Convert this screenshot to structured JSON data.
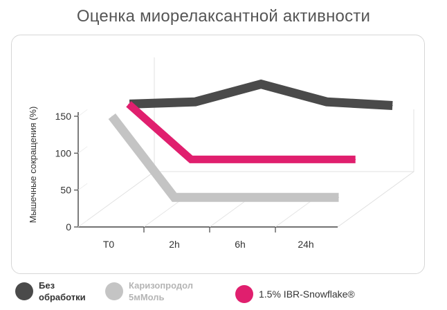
{
  "title": "Оценка миорелаксантной активности",
  "chart_data": {
    "type": "line",
    "style": "3d-ribbon",
    "categories": [
      "T0",
      "2h",
      "6h",
      "24h"
    ],
    "ylabel": "Мышечные сокращения (%)",
    "xlabel": "",
    "ylim": [
      0,
      150
    ],
    "yticks": [
      "0",
      "50",
      "100",
      "150"
    ],
    "grid": false,
    "legend_position": "bottom",
    "series": [
      {
        "name": "Без обработки",
        "color": "#4a4a4a",
        "x": [
          -0.4,
          0.6,
          1.6,
          2.6,
          3.6
        ],
        "values": [
          120,
          123,
          147,
          123,
          118
        ]
      },
      {
        "name": "Каризопродол 5мМоль",
        "color": "#c4c4c4",
        "x": [
          0.05,
          1.0,
          1.8,
          3.5
        ],
        "values": [
          150,
          40,
          40,
          40
        ]
      },
      {
        "name": "1.5% IBR-Snowflake®",
        "color": "#e01f6e",
        "x": [
          0.05,
          1.0,
          1.8,
          3.5
        ],
        "values": [
          150,
          75,
          75,
          75
        ]
      }
    ]
  },
  "legend": [
    {
      "line1": "Без",
      "line2": "обработки",
      "color": "#4a4a4a",
      "text_color": "#333333",
      "bold": true
    },
    {
      "line1": "Каризопродол",
      "line2": "5мМоль",
      "color": "#c4c4c4",
      "text_color": "#b5b5b5",
      "bold": true
    },
    {
      "line1": "1.5% IBR-Snowflake®",
      "line2": "",
      "color": "#e01f6e",
      "text_color": "#333333",
      "bold": false
    }
  ]
}
